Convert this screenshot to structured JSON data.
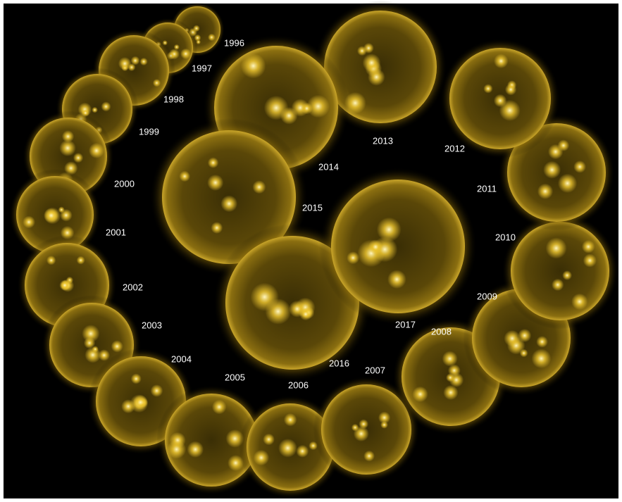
{
  "labels": [
    "1996",
    "1997",
    "1998",
    "1999",
    "2000",
    "2001",
    "2002",
    "2003",
    "2004",
    "2005",
    "2006",
    "2007",
    "2008",
    "2009",
    "2010",
    "2011",
    "2012",
    "2013",
    "2014",
    "2015",
    "2016",
    "2017"
  ]
}
